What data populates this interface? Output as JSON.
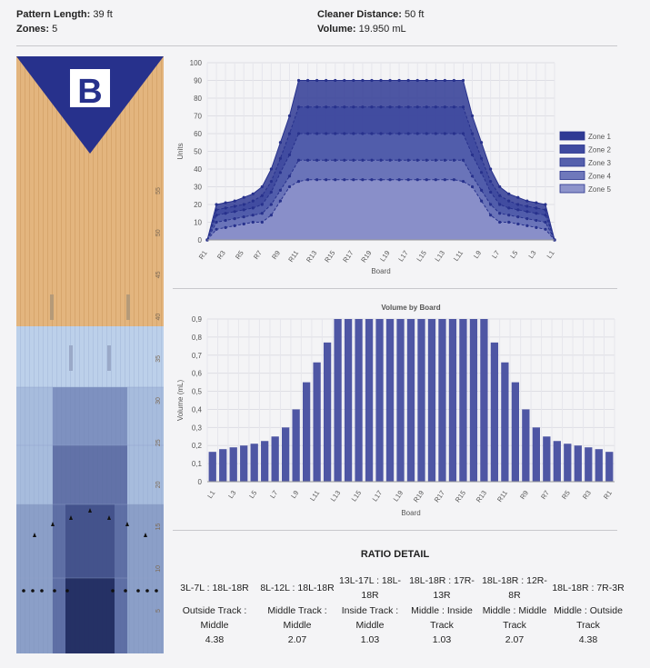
{
  "header": {
    "pattern_length_label": "Pattern Length:",
    "pattern_length_value": "39 ft",
    "zones_label": "Zones:",
    "zones_value": "5",
    "cleaner_label": "Cleaner Distance:",
    "cleaner_value": "50 ft",
    "volume_label": "Volume:",
    "volume_value": "19.950 mL"
  },
  "lane": {
    "logo_letter": "B",
    "distance_labels": [
      "55",
      "50",
      "45",
      "40",
      "35",
      "30",
      "25",
      "20",
      "15",
      "10",
      "5"
    ],
    "colors": {
      "wood": "#e3b57e",
      "oil": "#b9cde8",
      "triangle": "#27318c"
    }
  },
  "chart_data": [
    {
      "type": "area",
      "title": "",
      "xlabel": "Board",
      "ylabel": "Units",
      "ylim": [
        0,
        100
      ],
      "yticks": [
        "0",
        "10",
        "20",
        "30",
        "40",
        "50",
        "60",
        "70",
        "80",
        "90",
        "100"
      ],
      "categories": [
        "R1",
        "R2",
        "R3",
        "R4",
        "R5",
        "R6",
        "R7",
        "R8",
        "R9",
        "R10",
        "R11",
        "R12",
        "R13",
        "R14",
        "R15",
        "R16",
        "R17",
        "R18",
        "R19",
        "L20",
        "L19",
        "L18",
        "L17",
        "L16",
        "L15",
        "L14",
        "L13",
        "L12",
        "L11",
        "L10",
        "L9",
        "L8",
        "L7",
        "L6",
        "L5",
        "L4",
        "L3",
        "L2",
        "L1"
      ],
      "tick_labels": [
        "R1",
        "R3",
        "R5",
        "R7",
        "R9",
        "R11",
        "R13",
        "R15",
        "R17",
        "R19",
        "L19",
        "L17",
        "L15",
        "L13",
        "L11",
        "L9",
        "L7",
        "L5",
        "L3",
        "L1"
      ],
      "series": [
        {
          "name": "Zone 1",
          "values": [
            0,
            20,
            21,
            22,
            24,
            26,
            30,
            40,
            55,
            70,
            90,
            90,
            90,
            90,
            90,
            90,
            90,
            90,
            90,
            90,
            90,
            90,
            90,
            90,
            90,
            90,
            90,
            90,
            90,
            70,
            55,
            40,
            30,
            26,
            24,
            22,
            21,
            20,
            0
          ]
        },
        {
          "name": "Zone 2",
          "values": [
            0,
            17,
            18,
            19,
            20,
            22,
            25,
            33,
            46,
            60,
            75,
            75,
            75,
            75,
            75,
            75,
            75,
            75,
            75,
            75,
            75,
            75,
            75,
            75,
            75,
            75,
            75,
            75,
            75,
            60,
            46,
            33,
            25,
            22,
            20,
            19,
            18,
            17,
            0
          ]
        },
        {
          "name": "Zone 3",
          "values": [
            0,
            14,
            15,
            16,
            17,
            18,
            20,
            27,
            38,
            48,
            60,
            60,
            60,
            60,
            60,
            60,
            60,
            60,
            60,
            60,
            60,
            60,
            60,
            60,
            60,
            60,
            60,
            60,
            60,
            48,
            38,
            27,
            20,
            18,
            17,
            16,
            15,
            14,
            0
          ]
        },
        {
          "name": "Zone 4",
          "values": [
            0,
            10,
            11,
            12,
            13,
            14,
            15,
            20,
            28,
            36,
            45,
            45,
            45,
            45,
            45,
            45,
            45,
            45,
            45,
            45,
            45,
            45,
            45,
            45,
            45,
            45,
            45,
            45,
            45,
            36,
            28,
            20,
            15,
            14,
            13,
            12,
            11,
            10,
            0
          ]
        },
        {
          "name": "Zone 5",
          "values": [
            0,
            6,
            7,
            8,
            9,
            10,
            10,
            14,
            22,
            30,
            33,
            34,
            34,
            34,
            34,
            34,
            34,
            34,
            34,
            34,
            34,
            34,
            34,
            34,
            34,
            34,
            34,
            34,
            33,
            30,
            22,
            14,
            10,
            10,
            9,
            8,
            7,
            6,
            0
          ]
        }
      ],
      "legend": "right",
      "colors": [
        "#2f3a94",
        "#3f4aa0",
        "#5560ad",
        "#6f78bb",
        "#8e94cb"
      ]
    },
    {
      "type": "bar",
      "title": "Volume by Board",
      "xlabel": "Board",
      "ylabel": "Volume (mL)",
      "ylim": [
        0,
        0.9
      ],
      "yticks": [
        "0",
        "0,1",
        "0,2",
        "0,3",
        "0,4",
        "0,5",
        "0,6",
        "0,7",
        "0,8",
        "0,9"
      ],
      "categories": [
        "L1",
        "L2",
        "L3",
        "L4",
        "L5",
        "L6",
        "L7",
        "L8",
        "L9",
        "L10",
        "L11",
        "L12",
        "L13",
        "L14",
        "L15",
        "L16",
        "L17",
        "L18",
        "L19",
        "R20",
        "R19",
        "R18",
        "R17",
        "R16",
        "R15",
        "R14",
        "R13",
        "R12",
        "R11",
        "R10",
        "R9",
        "R8",
        "R7",
        "R6",
        "R5",
        "R4",
        "R3",
        "R2",
        "R1"
      ],
      "tick_labels": [
        "L1",
        "L3",
        "L5",
        "L7",
        "L9",
        "L11",
        "L13",
        "L15",
        "L17",
        "L19",
        "R19",
        "R17",
        "R15",
        "R13",
        "R11",
        "R9",
        "R7",
        "R5",
        "R3",
        "R1"
      ],
      "values": [
        0.165,
        0.18,
        0.19,
        0.2,
        0.21,
        0.225,
        0.25,
        0.3,
        0.4,
        0.55,
        0.66,
        0.77,
        0.9,
        0.9,
        0.9,
        0.9,
        0.9,
        0.9,
        0.9,
        0.9,
        0.9,
        0.9,
        0.9,
        0.9,
        0.9,
        0.9,
        0.9,
        0.77,
        0.66,
        0.55,
        0.4,
        0.3,
        0.25,
        0.225,
        0.21,
        0.2,
        0.19,
        0.18,
        0.165
      ],
      "color": "#4e56a4"
    }
  ],
  "ratio": {
    "title": "RATIO DETAIL",
    "items": [
      {
        "range": "3L-7L : 18L-18R",
        "label": "Outside Track : Middle",
        "value": "4.38"
      },
      {
        "range": "8L-12L : 18L-18R",
        "label": "Middle Track : Middle",
        "value": "2.07"
      },
      {
        "range": "13L-17L : 18L-18R",
        "label": "Inside Track : Middle",
        "value": "1.03"
      },
      {
        "range": "18L-18R : 17R-13R",
        "label": "Middle : Inside Track",
        "value": "1.03"
      },
      {
        "range": "18L-18R : 12R-8R",
        "label": "Middle : Middle Track",
        "value": "2.07"
      },
      {
        "range": "18L-18R : 7R-3R",
        "label": "Middle : Outside Track",
        "value": "4.38"
      }
    ]
  }
}
